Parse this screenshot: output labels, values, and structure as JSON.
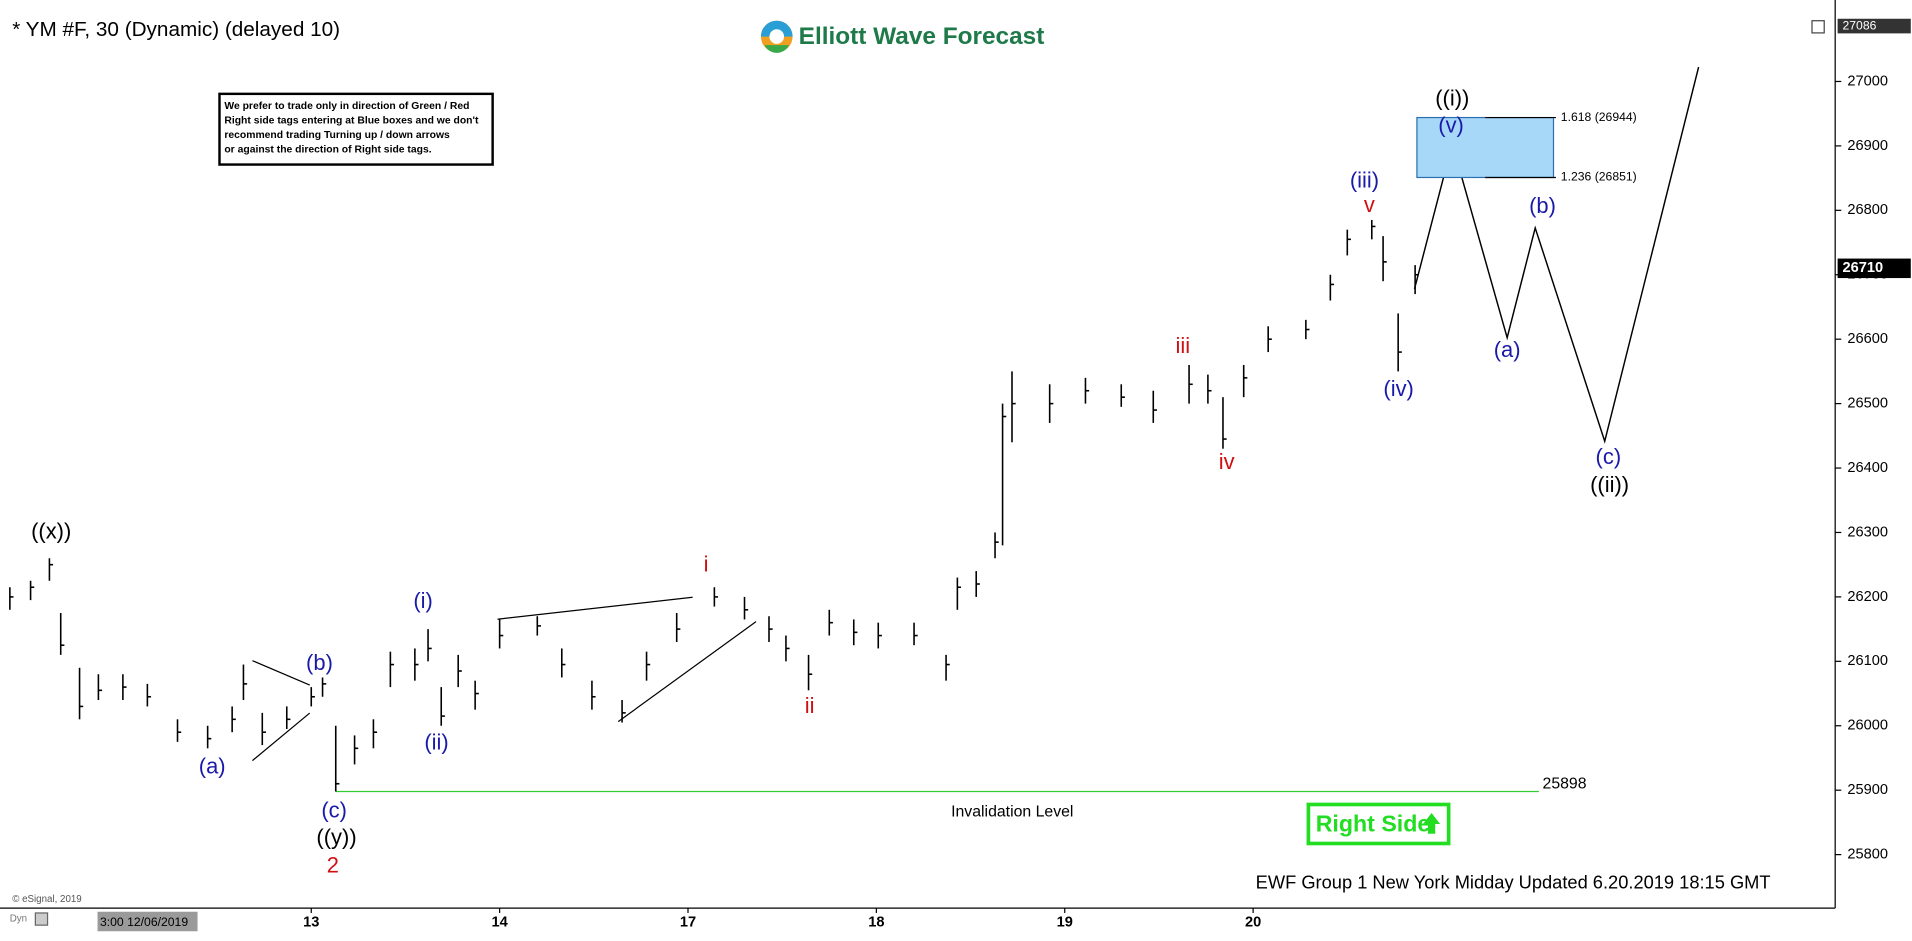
{
  "chart_data": {
    "type": "ohlc",
    "title": "* YM #F, 30 (Dynamic) (delayed 10)",
    "brand": "Elliott Wave Forecast",
    "notice": [
      "We prefer to trade only in direction of Green / Red",
      "Right side tags entering at Blue boxes and we don't",
      "recommend trading Turning up / down arrows",
      "or against the direction of Right side tags."
    ],
    "footer": "EWF Group 1 New York Midday Updated 6.20.2019 18:15 GMT",
    "copyright": "© eSignal, 2019",
    "cursor_label": "3:00 12/06/2019",
    "corner_label": "Dyn",
    "bar_color": "#000000",
    "x": [
      -0.6,
      -0.49,
      -0.39,
      -0.33,
      -0.23,
      -0.13,
      0.0,
      0.13,
      0.29,
      0.45,
      0.58,
      0.64,
      0.74,
      0.87,
      1.0,
      1.06,
      1.13,
      1.23,
      1.33,
      1.42,
      1.55,
      1.62,
      1.69,
      1.78,
      1.87,
      2.0,
      2.2,
      2.33,
      2.49,
      2.65,
      2.78,
      2.94,
      3.14,
      3.3,
      3.43,
      3.52,
      3.64,
      3.75,
      3.88,
      4.01,
      4.2,
      4.37,
      4.43,
      4.53,
      4.63,
      4.67,
      4.72,
      4.92,
      5.11,
      5.3,
      5.47,
      5.66,
      5.76,
      5.84,
      5.95,
      6.08,
      6.28,
      6.41,
      6.5,
      6.63,
      6.69,
      6.77,
      6.86
    ],
    "high": [
      26215,
      26225,
      26260,
      26175,
      26090,
      26080,
      26080,
      26065,
      26010,
      26000,
      26030,
      26095,
      26020,
      26030,
      26060,
      26075,
      26000,
      25985,
      26010,
      26115,
      26120,
      26150,
      26060,
      26110,
      26070,
      26165,
      26170,
      26120,
      26070,
      26040,
      26115,
      26175,
      26215,
      26200,
      26170,
      26140,
      26110,
      26180,
      26165,
      26160,
      26160,
      26110,
      26230,
      26240,
      26300,
      26500,
      26550,
      26530,
      26540,
      26530,
      26520,
      26560,
      26545,
      26510,
      26560,
      26620,
      26630,
      26700,
      26770,
      26785,
      26760,
      26640,
      26715
    ],
    "low": [
      26180,
      26195,
      26225,
      26110,
      26010,
      26040,
      26040,
      26030,
      25975,
      25965,
      25990,
      26040,
      25970,
      25995,
      26030,
      26045,
      25898,
      25940,
      25965,
      26060,
      26070,
      26100,
      26000,
      26060,
      26025,
      26120,
      26140,
      26075,
      26025,
      26005,
      26070,
      26130,
      26185,
      26165,
      26130,
      26100,
      26055,
      26140,
      26125,
      26120,
      26125,
      26070,
      26180,
      26200,
      26260,
      26280,
      26440,
      26470,
      26500,
      26495,
      26470,
      26500,
      26500,
      26430,
      26510,
      26580,
      26600,
      26660,
      26730,
      26755,
      26690,
      26550,
      26670
    ],
    "close": [
      26200,
      26215,
      26250,
      26125,
      26030,
      26055,
      26060,
      26045,
      25990,
      25980,
      26010,
      26065,
      25990,
      26010,
      26045,
      26065,
      25910,
      25965,
      25990,
      26095,
      26095,
      26120,
      26015,
      26085,
      26050,
      26140,
      26155,
      26095,
      26045,
      26020,
      26095,
      26150,
      26200,
      26180,
      26150,
      26120,
      26080,
      26160,
      26145,
      26140,
      26140,
      26095,
      26215,
      26220,
      26285,
      26480,
      26500,
      26500,
      26520,
      26510,
      26490,
      26530,
      26520,
      26445,
      26540,
      26600,
      26615,
      26685,
      26755,
      26775,
      26720,
      26580,
      26700
    ],
    "xlim": [
      -0.62,
      9.09
    ],
    "xticks": [
      {
        "value": 1,
        "label": "13"
      },
      {
        "value": 2,
        "label": "14"
      },
      {
        "value": 3,
        "label": "17"
      },
      {
        "value": 4,
        "label": "18"
      },
      {
        "value": 5,
        "label": "19"
      },
      {
        "value": 6,
        "label": "20"
      }
    ],
    "ylim": [
      25717,
      27117
    ],
    "yticks": [
      25800,
      25900,
      26000,
      26100,
      26200,
      26300,
      26400,
      26500,
      26600,
      26700,
      26800,
      26900,
      27000
    ],
    "last_price": 26710,
    "top_price": 27086,
    "target_box": {
      "color": "#a8d8f8",
      "levels": [
        {
          "value": 26944,
          "label": "1.618 (26944)"
        },
        {
          "value": 26851,
          "label": "1.236 (26851)"
        }
      ]
    },
    "invalidation": {
      "value": 25898,
      "label": "Invalidation Level",
      "color": "#33cc33"
    },
    "right_side": {
      "label": "Right Side",
      "color": "#22dd22"
    },
    "wave_labels": [
      {
        "text": "((x))",
        "color": "#000000"
      },
      {
        "text": "(a)",
        "color": "#1a1aaa"
      },
      {
        "text": "(b)",
        "color": "#1a1aaa"
      },
      {
        "text": "(c)",
        "color": "#1a1aaa"
      },
      {
        "text": "((y))",
        "color": "#000000"
      },
      {
        "text": "2",
        "color": "#d01010"
      },
      {
        "text": "(i)",
        "color": "#1a1aaa"
      },
      {
        "text": "(ii)",
        "color": "#1a1aaa"
      },
      {
        "text": "i",
        "color": "#d01010"
      },
      {
        "text": "ii",
        "color": "#d01010"
      },
      {
        "text": "iii",
        "color": "#d01010"
      },
      {
        "text": "iv",
        "color": "#d01010"
      },
      {
        "text": "(iii)",
        "color": "#1a1aaa"
      },
      {
        "text": "v",
        "color": "#d01010"
      },
      {
        "text": "(iv)",
        "color": "#1a1aaa"
      },
      {
        "text": "((i))",
        "color": "#000000"
      },
      {
        "text": "(v)",
        "color": "#1a1aaa"
      },
      {
        "text": "(b)",
        "color": "#1a1aaa"
      },
      {
        "text": "(a)",
        "color": "#1a1aaa"
      },
      {
        "text": "(c)",
        "color": "#1a1aaa"
      },
      {
        "text": "((ii))",
        "color": "#000000"
      }
    ]
  }
}
